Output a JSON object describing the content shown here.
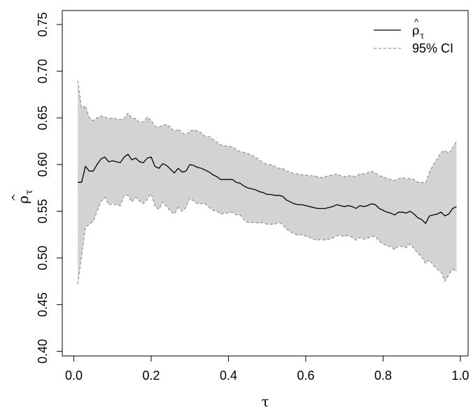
{
  "chart_data": {
    "type": "area",
    "xlabel": "τ",
    "ylabel_hat": "^",
    "ylabel_base": "ρ",
    "ylabel_sub": "τ",
    "xlim": [
      -0.03,
      1.02
    ],
    "ylim": [
      0.395,
      0.765
    ],
    "x_ticks": [
      0.0,
      0.2,
      0.4,
      0.6,
      0.8,
      1.0
    ],
    "x_tick_labels": [
      "0.0",
      "0.2",
      "0.4",
      "0.6",
      "0.8",
      "1.0"
    ],
    "y_ticks": [
      0.4,
      0.45,
      0.5,
      0.55,
      0.6,
      0.65,
      0.7,
      0.75
    ],
    "y_tick_labels": [
      "0.40",
      "0.45",
      "0.50",
      "0.55",
      "0.60",
      "0.65",
      "0.70",
      "0.75"
    ],
    "grid": false,
    "legend": {
      "position": "top-right",
      "entries": [
        {
          "label_hat": "^",
          "label_base": "ρ",
          "label_sub": "τ",
          "style": "solid"
        },
        {
          "label": "95% CI",
          "style": "dashed"
        }
      ]
    },
    "colors": {
      "ci_fill": "#d3d3d3",
      "estimate": "#000000",
      "ci_line": "#808080"
    },
    "x": [
      0.01,
      0.02,
      0.03,
      0.04,
      0.05,
      0.06,
      0.07,
      0.08,
      0.09,
      0.1,
      0.11,
      0.12,
      0.13,
      0.14,
      0.15,
      0.16,
      0.17,
      0.18,
      0.19,
      0.2,
      0.21,
      0.22,
      0.23,
      0.24,
      0.25,
      0.26,
      0.27,
      0.28,
      0.29,
      0.3,
      0.31,
      0.32,
      0.33,
      0.34,
      0.35,
      0.36,
      0.37,
      0.38,
      0.39,
      0.4,
      0.41,
      0.42,
      0.43,
      0.44,
      0.45,
      0.46,
      0.47,
      0.48,
      0.49,
      0.5,
      0.51,
      0.52,
      0.53,
      0.54,
      0.55,
      0.56,
      0.57,
      0.58,
      0.59,
      0.6,
      0.61,
      0.62,
      0.63,
      0.64,
      0.65,
      0.66,
      0.67,
      0.68,
      0.69,
      0.7,
      0.71,
      0.72,
      0.73,
      0.74,
      0.75,
      0.76,
      0.77,
      0.78,
      0.79,
      0.8,
      0.81,
      0.82,
      0.83,
      0.84,
      0.85,
      0.86,
      0.87,
      0.88,
      0.89,
      0.9,
      0.91,
      0.92,
      0.93,
      0.94,
      0.95,
      0.96,
      0.97,
      0.98,
      0.99
    ],
    "series": [
      {
        "values": [
          0.581,
          0.581,
          0.598,
          0.593,
          0.593,
          0.6,
          0.606,
          0.608,
          0.603,
          0.604,
          0.603,
          0.602,
          0.608,
          0.611,
          0.605,
          0.607,
          0.603,
          0.602,
          0.607,
          0.608,
          0.598,
          0.596,
          0.601,
          0.599,
          0.595,
          0.591,
          0.596,
          0.592,
          0.593,
          0.6,
          0.599,
          0.597,
          0.596,
          0.594,
          0.592,
          0.589,
          0.587,
          0.584,
          0.584,
          0.584,
          0.584,
          0.581,
          0.58,
          0.577,
          0.575,
          0.574,
          0.573,
          0.571,
          0.57,
          0.568,
          0.568,
          0.567,
          0.567,
          0.566,
          0.562,
          0.56,
          0.558,
          0.557,
          0.557,
          0.556,
          0.555,
          0.554,
          0.553,
          0.553,
          0.553,
          0.554,
          0.555,
          0.557,
          0.556,
          0.555,
          0.556,
          0.555,
          0.553,
          0.556,
          0.555,
          0.556,
          0.558,
          0.557,
          0.553,
          0.551,
          0.549,
          0.548,
          0.546,
          0.549,
          0.549,
          0.548,
          0.55,
          0.547,
          0.543,
          0.541,
          0.537,
          0.545,
          0.546,
          0.547,
          0.549,
          0.545,
          0.547,
          0.553,
          0.555
        ],
        "upper": [
          0.69,
          0.66,
          0.663,
          0.65,
          0.647,
          0.65,
          0.652,
          0.651,
          0.649,
          0.65,
          0.649,
          0.648,
          0.649,
          0.655,
          0.65,
          0.649,
          0.645,
          0.646,
          0.651,
          0.647,
          0.641,
          0.64,
          0.642,
          0.643,
          0.64,
          0.635,
          0.638,
          0.634,
          0.632,
          0.636,
          0.637,
          0.636,
          0.634,
          0.63,
          0.63,
          0.627,
          0.624,
          0.621,
          0.62,
          0.62,
          0.619,
          0.616,
          0.614,
          0.613,
          0.612,
          0.61,
          0.608,
          0.605,
          0.602,
          0.6,
          0.6,
          0.598,
          0.596,
          0.596,
          0.593,
          0.592,
          0.59,
          0.59,
          0.589,
          0.589,
          0.588,
          0.588,
          0.587,
          0.586,
          0.587,
          0.588,
          0.589,
          0.59,
          0.588,
          0.587,
          0.588,
          0.588,
          0.587,
          0.59,
          0.59,
          0.591,
          0.593,
          0.591,
          0.588,
          0.587,
          0.585,
          0.584,
          0.583,
          0.585,
          0.586,
          0.585,
          0.585,
          0.584,
          0.581,
          0.581,
          0.58,
          0.592,
          0.6,
          0.606,
          0.613,
          0.615,
          0.612,
          0.618,
          0.625
        ]
      }
    ]
  }
}
